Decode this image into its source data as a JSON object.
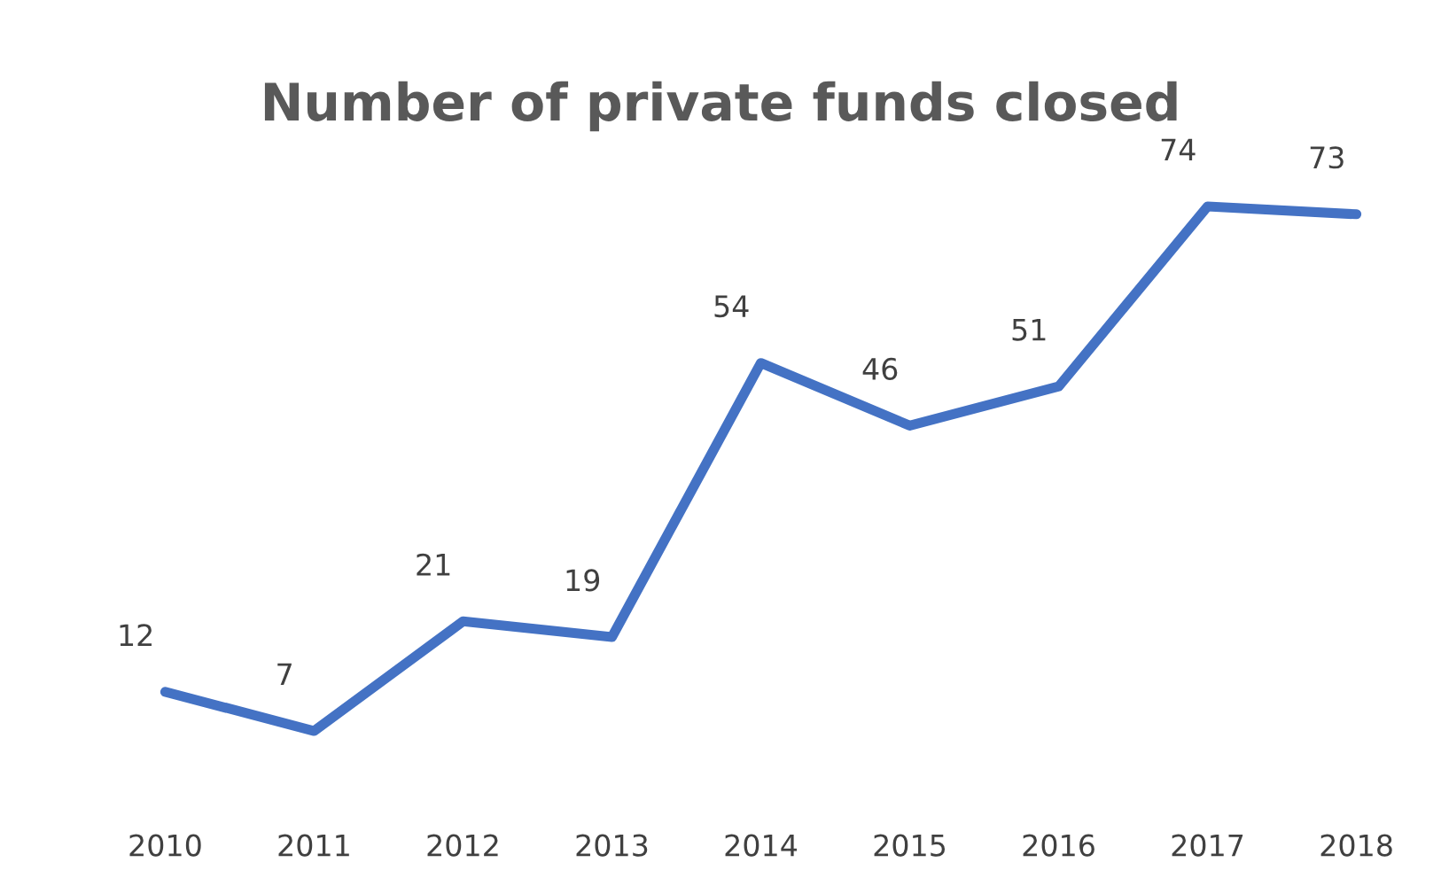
{
  "chart_data": {
    "type": "line",
    "title": "Number of private funds closed",
    "categories": [
      "2010",
      "2011",
      "2012",
      "2013",
      "2014",
      "2015",
      "2016",
      "2017",
      "2018"
    ],
    "series": [
      {
        "color": "#4472c4",
        "values": [
          12,
          7,
          21,
          19,
          54,
          46,
          51,
          74,
          73
        ]
      }
    ],
    "tick_labels": "x",
    "data_labels": true,
    "grid": false,
    "legend": false,
    "marker": "none",
    "line_style": "solid"
  }
}
